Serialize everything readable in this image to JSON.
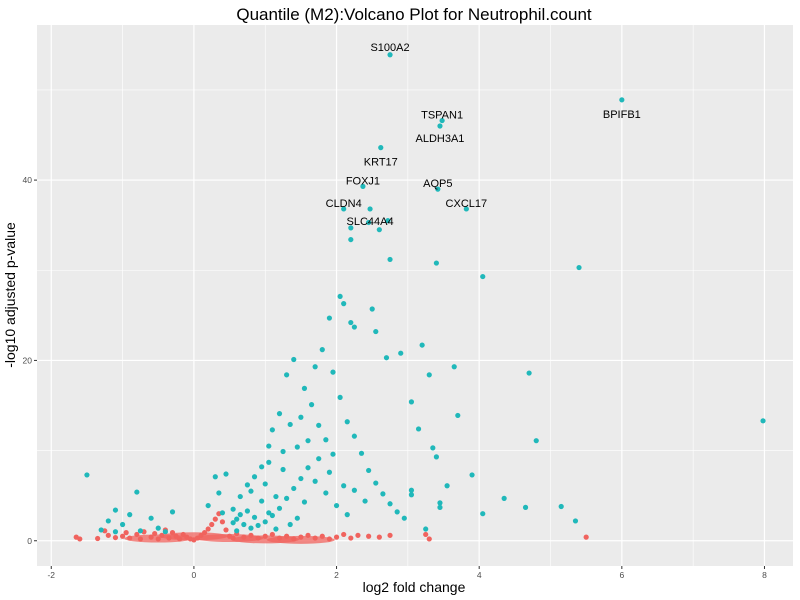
{
  "chart_data": {
    "type": "scatter",
    "title": "Quantile (M2):Volcano Plot for Neutrophil.count",
    "xlabel": "log2 fold change",
    "ylabel": "-log10 adjusted p-value",
    "xlim": [
      -2.2,
      8.4
    ],
    "ylim": [
      -2.8,
      57.2
    ],
    "x_ticks": [
      {
        "value": -2,
        "label": "-2"
      },
      {
        "value": 0,
        "label": "0"
      },
      {
        "value": 2,
        "label": "2"
      },
      {
        "value": 4,
        "label": "4"
      },
      {
        "value": 6,
        "label": "6"
      },
      {
        "value": 8,
        "label": "8"
      }
    ],
    "y_ticks": [
      {
        "value": 0,
        "label": "0"
      },
      {
        "value": 20,
        "label": "20"
      },
      {
        "value": 40,
        "label": "40"
      }
    ],
    "grid": true,
    "legend": "none",
    "colors": {
      "panel": "#ebebeb",
      "grid": "#ffffff",
      "significant": "#20b8ba",
      "not_significant": "#f0635e"
    },
    "series": [
      {
        "color": "#20b8ba",
        "points": [
          [
            2.75,
            53.9
          ],
          [
            6.0,
            48.9
          ],
          [
            3.48,
            46.6
          ],
          [
            3.45,
            46.0
          ],
          [
            2.62,
            43.6
          ],
          [
            2.37,
            39.3
          ],
          [
            3.42,
            39.0
          ],
          [
            2.47,
            36.8
          ],
          [
            3.82,
            36.8
          ],
          [
            2.1,
            36.8
          ],
          [
            2.72,
            35.5
          ],
          [
            2.45,
            35.3
          ],
          [
            2.2,
            34.7
          ],
          [
            2.6,
            34.5
          ],
          [
            2.2,
            33.4
          ],
          [
            2.75,
            31.2
          ],
          [
            3.4,
            30.8
          ],
          [
            4.05,
            29.3
          ],
          [
            5.4,
            30.3
          ],
          [
            7.98,
            13.3
          ],
          [
            2.05,
            27.1
          ],
          [
            2.1,
            26.3
          ],
          [
            2.2,
            24.2
          ],
          [
            2.25,
            23.7
          ],
          [
            2.55,
            23.2
          ],
          [
            1.9,
            24.7
          ],
          [
            2.5,
            25.7
          ],
          [
            3.2,
            21.7
          ],
          [
            2.9,
            20.8
          ],
          [
            2.7,
            20.3
          ],
          [
            3.65,
            19.3
          ],
          [
            4.7,
            18.6
          ],
          [
            3.3,
            18.4
          ],
          [
            3.05,
            15.4
          ],
          [
            3.7,
            13.9
          ],
          [
            3.15,
            12.4
          ],
          [
            4.8,
            11.1
          ],
          [
            3.35,
            10.3
          ],
          [
            3.4,
            9.3
          ],
          [
            3.55,
            6.1
          ],
          [
            3.9,
            7.3
          ],
          [
            3.05,
            5.6
          ],
          [
            3.05,
            5.1
          ],
          [
            3.45,
            3.7
          ],
          [
            3.45,
            4.2
          ],
          [
            4.05,
            3.0
          ],
          [
            4.35,
            4.7
          ],
          [
            4.65,
            3.7
          ],
          [
            5.15,
            3.8
          ],
          [
            5.35,
            2.2
          ],
          [
            3.25,
            1.3
          ],
          [
            1.4,
            20.1
          ],
          [
            1.3,
            18.4
          ],
          [
            1.2,
            14.1
          ],
          [
            1.1,
            12.3
          ],
          [
            1.05,
            10.5
          ],
          [
            0.95,
            8.2
          ],
          [
            0.85,
            7.1
          ],
          [
            0.75,
            6.2
          ],
          [
            0.65,
            4.9
          ],
          [
            0.55,
            3.5
          ],
          [
            1.55,
            16.9
          ],
          [
            1.65,
            15.1
          ],
          [
            1.75,
            12.8
          ],
          [
            1.85,
            11.2
          ],
          [
            1.95,
            9.6
          ],
          [
            1.6,
            8.1
          ],
          [
            1.5,
            6.9
          ],
          [
            1.4,
            5.8
          ],
          [
            1.3,
            4.7
          ],
          [
            1.2,
            3.6
          ],
          [
            1.1,
            2.8
          ],
          [
            1.0,
            2.1
          ],
          [
            0.9,
            1.7
          ],
          [
            0.8,
            1.4
          ],
          [
            0.7,
            1.8
          ],
          [
            0.6,
            2.4
          ],
          [
            0.75,
            3.3
          ],
          [
            0.95,
            4.4
          ],
          [
            1.25,
            7.9
          ],
          [
            1.45,
            10.4
          ],
          [
            1.7,
            19.3
          ],
          [
            1.8,
            21.2
          ],
          [
            1.95,
            18.7
          ],
          [
            2.05,
            15.9
          ],
          [
            2.15,
            13.2
          ],
          [
            2.25,
            11.6
          ],
          [
            2.35,
            9.7
          ],
          [
            2.45,
            7.8
          ],
          [
            2.55,
            6.4
          ],
          [
            2.65,
            5.2
          ],
          [
            2.75,
            4.1
          ],
          [
            2.85,
            3.2
          ],
          [
            2.95,
            2.5
          ],
          [
            2.15,
            2.9
          ],
          [
            2.0,
            3.9
          ],
          [
            1.85,
            5.3
          ],
          [
            1.7,
            6.6
          ],
          [
            1.55,
            4.3
          ],
          [
            1.45,
            2.5
          ],
          [
            1.35,
            1.8
          ],
          [
            1.15,
            1.3
          ],
          [
            0.6,
            1.1
          ],
          [
            0.55,
            2.0
          ],
          [
            0.65,
            2.9
          ],
          [
            0.85,
            2.6
          ],
          [
            1.05,
            3.1
          ],
          [
            1.15,
            4.9
          ],
          [
            0.35,
            5.3
          ],
          [
            0.2,
            3.9
          ],
          [
            0.4,
            3.1
          ],
          [
            0.3,
            7.1
          ],
          [
            0.45,
            7.4
          ],
          [
            0.8,
            5.5
          ],
          [
            1.0,
            6.3
          ],
          [
            1.05,
            8.7
          ],
          [
            1.25,
            9.9
          ],
          [
            1.35,
            12.9
          ],
          [
            1.5,
            13.7
          ],
          [
            1.6,
            11.1
          ],
          [
            1.75,
            9.1
          ],
          [
            1.9,
            7.6
          ],
          [
            2.1,
            6.1
          ],
          [
            2.25,
            5.6
          ],
          [
            2.4,
            4.4
          ],
          [
            -1.5,
            7.3
          ],
          [
            -0.8,
            5.4
          ],
          [
            -1.1,
            3.4
          ],
          [
            -1.2,
            2.2
          ],
          [
            -1.0,
            1.8
          ],
          [
            -0.9,
            2.9
          ],
          [
            -0.6,
            2.5
          ],
          [
            -0.5,
            1.4
          ],
          [
            -0.3,
            3.2
          ],
          [
            -0.4,
            1.0
          ],
          [
            -1.3,
            1.2
          ],
          [
            -1.1,
            1.0
          ],
          [
            -0.75,
            1.1
          ]
        ]
      },
      {
        "color": "#f0635e",
        "points": [
          [
            -1.65,
            0.4
          ],
          [
            -1.6,
            0.2
          ],
          [
            -1.35,
            0.25
          ],
          [
            -1.25,
            1.1
          ],
          [
            -1.2,
            0.6
          ],
          [
            -1.1,
            0.35
          ],
          [
            -1.0,
            0.5
          ],
          [
            -0.95,
            0.9
          ],
          [
            -0.9,
            0.3
          ],
          [
            -0.8,
            0.7
          ],
          [
            -0.75,
            0.2
          ],
          [
            -0.7,
            1.0
          ],
          [
            -0.6,
            0.4
          ],
          [
            -0.55,
            0.8
          ],
          [
            -0.5,
            0.2
          ],
          [
            -0.45,
            0.6
          ],
          [
            -0.4,
            1.2
          ],
          [
            -0.35,
            0.3
          ],
          [
            -0.3,
            0.9
          ],
          [
            -0.25,
            0.5
          ],
          [
            -0.2,
            0.2
          ],
          [
            -0.15,
            0.7
          ],
          [
            -0.1,
            0.4
          ],
          [
            -0.05,
            0.2
          ],
          [
            0.0,
            0.1
          ],
          [
            0.05,
            0.3
          ],
          [
            0.1,
            0.6
          ],
          [
            0.15,
            0.9
          ],
          [
            0.2,
            1.3
          ],
          [
            0.25,
            1.8
          ],
          [
            0.3,
            2.4
          ],
          [
            0.35,
            3.0
          ],
          [
            0.4,
            2.1
          ],
          [
            0.45,
            1.2
          ],
          [
            0.5,
            0.5
          ],
          [
            0.55,
            0.3
          ],
          [
            0.6,
            0.8
          ],
          [
            0.7,
            0.4
          ],
          [
            0.8,
            0.6
          ],
          [
            0.9,
            0.3
          ],
          [
            1.0,
            0.5
          ],
          [
            1.1,
            0.7
          ],
          [
            1.2,
            0.3
          ],
          [
            1.3,
            0.5
          ],
          [
            1.4,
            0.2
          ],
          [
            1.5,
            0.4
          ],
          [
            1.6,
            0.6
          ],
          [
            1.7,
            0.3
          ],
          [
            1.8,
            0.5
          ],
          [
            1.9,
            0.2
          ],
          [
            2.0,
            0.4
          ],
          [
            2.1,
            0.7
          ],
          [
            2.2,
            0.3
          ],
          [
            2.3,
            0.6
          ],
          [
            2.45,
            0.5
          ],
          [
            2.6,
            0.4
          ],
          [
            2.75,
            0.6
          ],
          [
            3.25,
            0.7
          ],
          [
            3.3,
            0.2
          ],
          [
            5.5,
            0.4
          ]
        ]
      }
    ],
    "annotations": [
      {
        "x": 2.75,
        "y": 53.9,
        "text": "S100A2"
      },
      {
        "x": 6.0,
        "y": 48.9,
        "text": "BPIFB1"
      },
      {
        "x": 3.48,
        "y": 46.6,
        "text": "TSPAN1"
      },
      {
        "x": 3.45,
        "y": 46.0,
        "text": "ALDH3A1"
      },
      {
        "x": 2.62,
        "y": 43.6,
        "text": "KRT17"
      },
      {
        "x": 2.37,
        "y": 39.3,
        "text": "FOXJ1"
      },
      {
        "x": 3.42,
        "y": 39.0,
        "text": "AQP5"
      },
      {
        "x": 3.82,
        "y": 36.8,
        "text": "CXCL17"
      },
      {
        "x": 2.1,
        "y": 36.8,
        "text": "CLDN4"
      },
      {
        "x": 2.47,
        "y": 36.8,
        "text": "SLC44A4"
      }
    ]
  }
}
